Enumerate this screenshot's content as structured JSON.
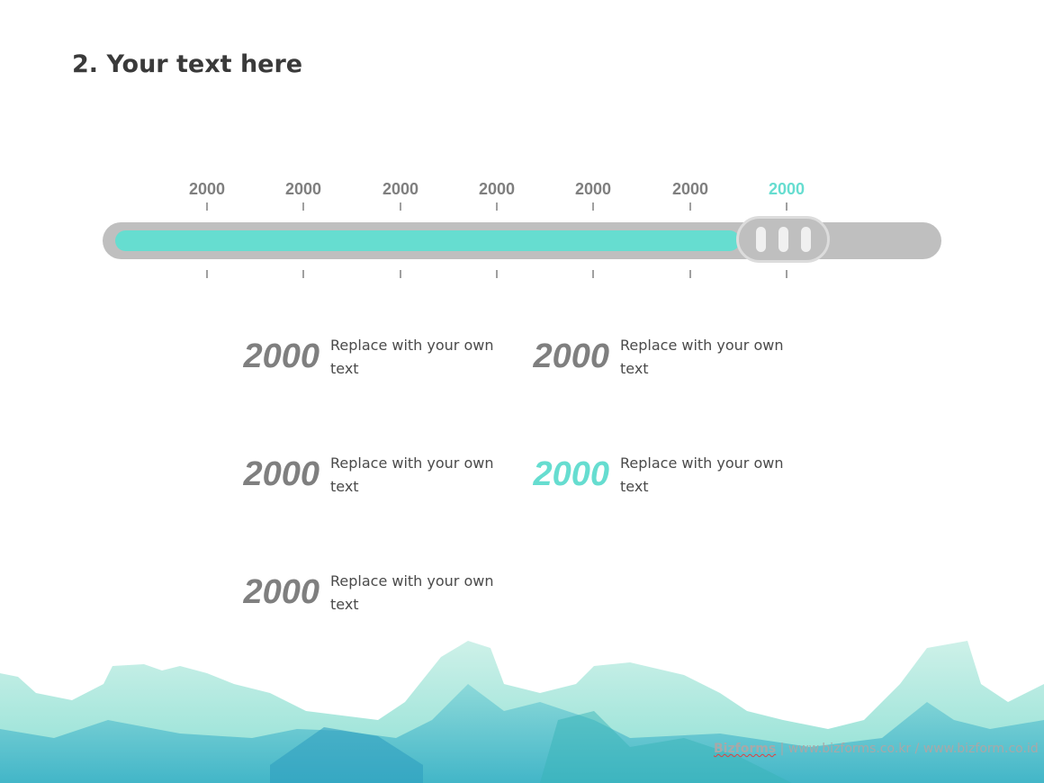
{
  "title": "2. Your text here",
  "timeline": {
    "labels": [
      "2000",
      "2000",
      "2000",
      "2000",
      "2000",
      "2000",
      "2000"
    ],
    "active_index": 6,
    "progress_percent": 76,
    "fill_color": "#66ddd0",
    "track_color": "#bfbfbf"
  },
  "items": [
    {
      "year": "2000",
      "text": "Replace with your own text",
      "active": false
    },
    {
      "year": "2000",
      "text": "Replace with your own text",
      "active": false
    },
    {
      "year": "2000",
      "text": "Replace with your own text",
      "active": false
    },
    {
      "year": "2000",
      "text": "Replace with your own text",
      "active": true
    },
    {
      "year": "2000",
      "text": "Replace with your own text",
      "active": false
    }
  ],
  "footer": {
    "brand": "Bizforms",
    "separator": "|",
    "links": "www.bizforms.co.kr / www.bizform.co.id"
  }
}
